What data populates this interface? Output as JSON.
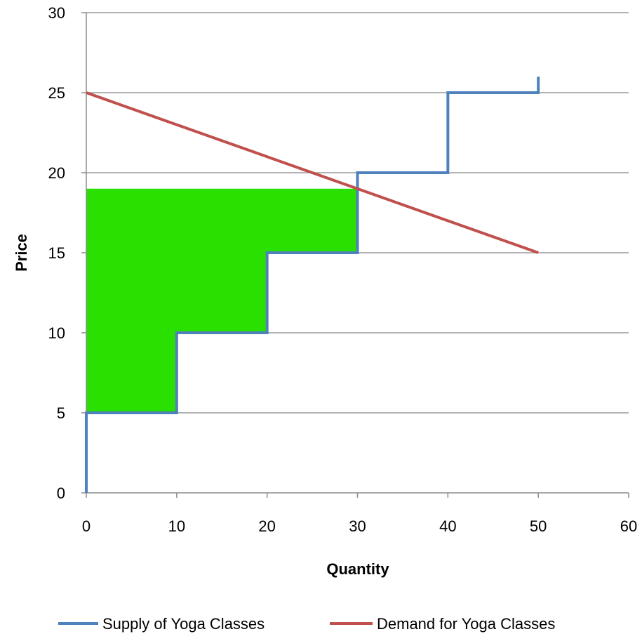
{
  "chart_data": {
    "type": "line",
    "title": "",
    "xlabel": "Quantity",
    "ylabel": "Price",
    "xlim": [
      0,
      60
    ],
    "ylim": [
      0,
      30
    ],
    "x_ticks": [
      0,
      10,
      20,
      30,
      40,
      50,
      60
    ],
    "y_ticks": [
      0,
      5,
      10,
      15,
      20,
      25,
      30
    ],
    "grid": "horizontal",
    "legend_position": "bottom",
    "series": [
      {
        "name": "Supply of Yoga Classes",
        "color": "#4f81bd",
        "step": true,
        "points": [
          [
            0,
            0
          ],
          [
            0,
            5
          ],
          [
            10,
            5
          ],
          [
            10,
            10
          ],
          [
            20,
            10
          ],
          [
            20,
            15
          ],
          [
            30,
            15
          ],
          [
            30,
            20
          ],
          [
            40,
            20
          ],
          [
            40,
            25
          ],
          [
            50,
            25
          ],
          [
            50,
            26
          ]
        ]
      },
      {
        "name": "Demand for Yoga Classes",
        "color": "#c0504d",
        "points": [
          [
            0,
            25
          ],
          [
            50,
            15
          ]
        ]
      }
    ],
    "shaded_region": {
      "color": "#2ae000",
      "points": [
        [
          0,
          5
        ],
        [
          10,
          5
        ],
        [
          10,
          10
        ],
        [
          20,
          10
        ],
        [
          20,
          15
        ],
        [
          30,
          15
        ],
        [
          30,
          19
        ],
        [
          0,
          19
        ]
      ]
    }
  }
}
